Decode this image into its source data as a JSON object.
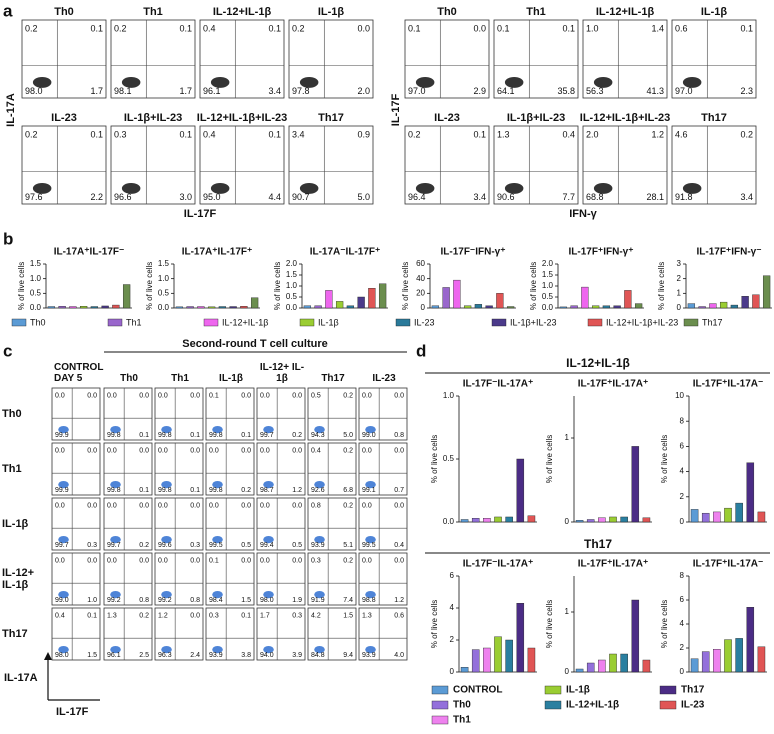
{
  "flow_cytometry": [
    {
      "panel": "a",
      "groups": [
        {
          "y_label": "IL-17A",
          "x_label": "IL-17F",
          "plots": [
            {
              "title": "Th0",
              "quadrants": [
                "0.2",
                "0.1",
                "98.0",
                "1.7"
              ]
            },
            {
              "title": "Th1",
              "quadrants": [
                "0.2",
                "0.1",
                "98.1",
                "1.7"
              ]
            },
            {
              "title": "IL-12+IL-1β",
              "quadrants": [
                "0.4",
                "0.1",
                "96.1",
                "3.4"
              ]
            },
            {
              "title": "IL-1β",
              "quadrants": [
                "0.2",
                "0.0",
                "97.8",
                "2.0"
              ]
            },
            {
              "title": "IL-23",
              "quadrants": [
                "0.2",
                "0.1",
                "97.6",
                "2.2"
              ]
            },
            {
              "title": "IL-1β+IL-23",
              "quadrants": [
                "0.3",
                "0.1",
                "96.6",
                "3.0"
              ]
            },
            {
              "title": "IL-12+IL-1β+IL-23",
              "quadrants": [
                "0.4",
                "0.1",
                "95.0",
                "4.4"
              ]
            },
            {
              "title": "Th17",
              "quadrants": [
                "3.4",
                "0.9",
                "90.7",
                "5.0"
              ]
            }
          ]
        },
        {
          "y_label": "IL-17F",
          "x_label": "IFN-γ",
          "plots": [
            {
              "title": "Th0",
              "quadrants": [
                "0.1",
                "0.0",
                "97.0",
                "2.9"
              ]
            },
            {
              "title": "Th1",
              "quadrants": [
                "0.1",
                "0.1",
                "64.1",
                "35.8"
              ]
            },
            {
              "title": "IL-12+IL-1β",
              "quadrants": [
                "1.0",
                "1.4",
                "56.3",
                "41.3"
              ]
            },
            {
              "title": "IL-1β",
              "quadrants": [
                "0.6",
                "0.1",
                "97.0",
                "2.3"
              ]
            },
            {
              "title": "IL-23",
              "quadrants": [
                "0.2",
                "0.1",
                "96.4",
                "3.4"
              ]
            },
            {
              "title": "IL-1β+IL-23",
              "quadrants": [
                "1.3",
                "0.4",
                "90.6",
                "7.7"
              ]
            },
            {
              "title": "IL-12+IL-1β+IL-23",
              "quadrants": [
                "2.0",
                "1.2",
                "68.8",
                "28.1"
              ]
            },
            {
              "title": "Th17",
              "quadrants": [
                "4.6",
                "0.2",
                "91.8",
                "3.4"
              ]
            }
          ]
        }
      ]
    },
    {
      "panel": "c",
      "title": "Second-round T cell culture",
      "columns": [
        "CONTROL DAY 5",
        "Th0",
        "Th1",
        "IL-1β",
        "IL-12+ IL-1β",
        "Th17",
        "IL-23"
      ],
      "rows": [
        "Th0",
        "Th1",
        "IL-1β",
        "IL-12+ IL-1β",
        "Th17"
      ],
      "y_label": "IL-17A",
      "x_label": "IL-17F",
      "cells": [
        [
          [
            "0.0",
            "0.0",
            "99.9",
            null
          ],
          [
            "0.0",
            "0.0",
            "99.8",
            "0.1"
          ],
          [
            "0.0",
            "0.0",
            "99.8",
            "0.1"
          ],
          [
            "0.1",
            "0.0",
            "99.8",
            "0.1"
          ],
          [
            "0.0",
            "0.0",
            "99.7",
            "0.2"
          ],
          [
            "0.5",
            "0.2",
            "94.3",
            "5.0"
          ],
          [
            "0.0",
            "0.0",
            "99.0",
            "0.8"
          ]
        ],
        [
          [
            "0.0",
            "0.0",
            "99.9",
            null
          ],
          [
            "0.0",
            "0.0",
            "99.8",
            "0.1"
          ],
          [
            "0.0",
            "0.0",
            "99.8",
            "0.1"
          ],
          [
            "0.0",
            "0.0",
            "99.8",
            "0.2"
          ],
          [
            "0.0",
            "0.0",
            "98.7",
            "1.2"
          ],
          [
            "0.4",
            "0.2",
            "92.6",
            "6.8"
          ],
          [
            "0.0",
            "0.0",
            "99.1",
            "0.7"
          ]
        ],
        [
          [
            "0.0",
            "0.0",
            "99.7",
            "0.3"
          ],
          [
            "0.0",
            "0.0",
            "99.7",
            "0.2"
          ],
          [
            "0.0",
            "0.0",
            "99.6",
            "0.3"
          ],
          [
            "0.0",
            "0.0",
            "99.5",
            "0.5"
          ],
          [
            "0.0",
            "0.0",
            "99.4",
            "0.5"
          ],
          [
            "0.8",
            "0.2",
            "93.9",
            "5.1"
          ],
          [
            "0.0",
            "0.0",
            "99.5",
            "0.4"
          ]
        ],
        [
          [
            "0.0",
            "0.0",
            "99.0",
            "1.0"
          ],
          [
            "0.0",
            "0.0",
            "99.2",
            "0.8"
          ],
          [
            "0.0",
            "0.0",
            "99.2",
            "0.8"
          ],
          [
            "0.1",
            "0.0",
            "98.4",
            "1.5"
          ],
          [
            "0.0",
            "0.0",
            "98.0",
            "1.9"
          ],
          [
            "0.3",
            "0.2",
            "91.9",
            "7.4"
          ],
          [
            "0.0",
            "0.0",
            "98.8",
            "1.2"
          ]
        ],
        [
          [
            "0.4",
            "0.1",
            "98.0",
            "1.5"
          ],
          [
            "1.3",
            "0.2",
            "96.1",
            "2.5"
          ],
          [
            "1.2",
            "0.0",
            "96.3",
            "2.4"
          ],
          [
            "0.3",
            "0.1",
            "93.9",
            "3.8"
          ],
          [
            "1.7",
            "0.3",
            "94.0",
            "3.9"
          ],
          [
            "4.2",
            "1.5",
            "84.8",
            "9.4"
          ],
          [
            "1.3",
            "0.6",
            "93.9",
            "4.0"
          ]
        ]
      ]
    }
  ],
  "chart_data": [
    {
      "type": "bar",
      "panel": "b",
      "y_label": "% of live cells",
      "categories": [
        "Th0",
        "Th1",
        "IL-12+IL-1β",
        "IL-1β",
        "IL-23",
        "IL-1β+IL-23",
        "IL-12+IL-1β+IL-23",
        "Th17"
      ],
      "colors": [
        "#5b9bd5",
        "#9966cc",
        "#ee66ee",
        "#9acd32",
        "#2a7a9a",
        "#4b3a8a",
        "#e05555",
        "#6b8e4e"
      ],
      "charts": [
        {
          "title": "IL-17A⁺IL-17F⁻",
          "values": [
            0.05,
            0.06,
            0.05,
            0.06,
            0.05,
            0.07,
            0.1,
            0.8
          ],
          "ylim": [
            0,
            1.5
          ],
          "yticks": [
            {
              "value": 0,
              "label": "0.0"
            },
            {
              "value": 0.5,
              "label": "0.5"
            },
            {
              "value": 1,
              "label": "1.0"
            },
            {
              "value": 1.5,
              "label": "1.5"
            }
          ]
        },
        {
          "title": "IL-17A⁺IL-17F⁺",
          "values": [
            0.04,
            0.05,
            0.05,
            0.04,
            0.05,
            0.05,
            0.06,
            0.35
          ],
          "ylim": [
            0,
            1.5
          ],
          "yticks": [
            {
              "value": 0,
              "label": "0.0"
            },
            {
              "value": 0.5,
              "label": "0.5"
            },
            {
              "value": 1,
              "label": "1.0"
            },
            {
              "value": 1.5,
              "label": "1.5"
            }
          ]
        },
        {
          "title": "IL-17A⁻IL-17F⁺",
          "values": [
            0.1,
            0.1,
            0.8,
            0.3,
            0.1,
            0.5,
            0.9,
            1.1
          ],
          "ylim": [
            0,
            2
          ],
          "yticks": [
            {
              "value": 0,
              "label": "0.0"
            },
            {
              "value": 0.5,
              "label": "0.5"
            },
            {
              "value": 1,
              "label": "1.0"
            },
            {
              "value": 1.5,
              "label": "1.5"
            },
            {
              "value": 2,
              "label": "2.0"
            }
          ]
        },
        {
          "title": "IL-17F⁻IFN-γ⁺",
          "values": [
            3,
            28,
            38,
            3,
            5,
            3,
            20,
            2
          ],
          "ylim": [
            0,
            60
          ],
          "yticks": [
            0,
            20,
            40,
            60
          ]
        },
        {
          "title": "IL-17F⁺IFN-γ⁺",
          "values": [
            0.05,
            0.1,
            0.95,
            0.1,
            0.1,
            0.1,
            0.8,
            0.2
          ],
          "ylim": [
            0,
            2
          ],
          "yticks": [
            {
              "value": 0,
              "label": "0.0"
            },
            {
              "value": 0.5,
              "label": "0.5"
            },
            {
              "value": 1,
              "label": "1.0"
            },
            {
              "value": 1.5,
              "label": "1.5"
            },
            {
              "value": 2,
              "label": "2.0"
            }
          ]
        },
        {
          "title": "IL-17F⁺IFN-γ⁻",
          "values": [
            0.3,
            0.1,
            0.3,
            0.4,
            0.2,
            0.8,
            0.9,
            2.2
          ],
          "ylim": [
            0,
            3
          ],
          "yticks": [
            0,
            1,
            2,
            3
          ]
        }
      ]
    },
    {
      "type": "bar",
      "panel": "d",
      "y_label": "% of live cells",
      "group_titles": [
        "IL-12+IL-1β",
        "Th17"
      ],
      "categories": [
        "CONTROL",
        "Th0",
        "Th1",
        "IL-1β",
        "IL-12+IL-1β",
        "Th17",
        "IL-23"
      ],
      "colors": [
        "#5b9bd5",
        "#9370db",
        "#ee82ee",
        "#9acd32",
        "#2a7fa0",
        "#4b2c85",
        "#e05555"
      ],
      "charts": [
        {
          "title": "IL-17F⁻IL-17A⁺",
          "values": [
            0.02,
            0.03,
            0.03,
            0.04,
            0.04,
            0.5,
            0.05
          ],
          "ylim": [
            0,
            1
          ],
          "yticks": [
            {
              "value": 0,
              "label": "0.0"
            },
            {
              "value": 0.5,
              "label": "0.5"
            },
            {
              "value": 1,
              "label": "1.0"
            }
          ]
        },
        {
          "title": "IL-17F⁺IL-17A⁺",
          "values": [
            0.02,
            0.03,
            0.05,
            0.06,
            0.06,
            0.9,
            0.05
          ],
          "ylim": [
            0,
            1.5
          ],
          "yticks": [
            0,
            1
          ]
        },
        {
          "title": "IL-17F⁺IL-17A⁻",
          "values": [
            1.0,
            0.7,
            0.8,
            1.1,
            1.5,
            4.7,
            0.8
          ],
          "ylim": [
            0,
            10
          ],
          "yticks": [
            0,
            2,
            4,
            6,
            8,
            10
          ]
        },
        {
          "title": "IL-17F⁻IL-17A⁺",
          "values": [
            0.3,
            1.4,
            1.5,
            2.2,
            2.0,
            4.3,
            1.5
          ],
          "ylim": [
            0,
            6
          ],
          "yticks": [
            0,
            2,
            4,
            6
          ]
        },
        {
          "title": "IL-17F⁺IL-17A⁺",
          "values": [
            0.05,
            0.15,
            0.2,
            0.3,
            0.3,
            1.2,
            0.2
          ],
          "ylim": [
            0,
            1.6
          ],
          "yticks": [
            0,
            1
          ]
        },
        {
          "title": "IL-17F⁺IL-17A⁻",
          "values": [
            1.1,
            1.7,
            1.9,
            2.7,
            2.8,
            5.4,
            2.1
          ],
          "ylim": [
            0,
            8
          ],
          "yticks": [
            0,
            2,
            4,
            6,
            8
          ]
        }
      ]
    }
  ]
}
